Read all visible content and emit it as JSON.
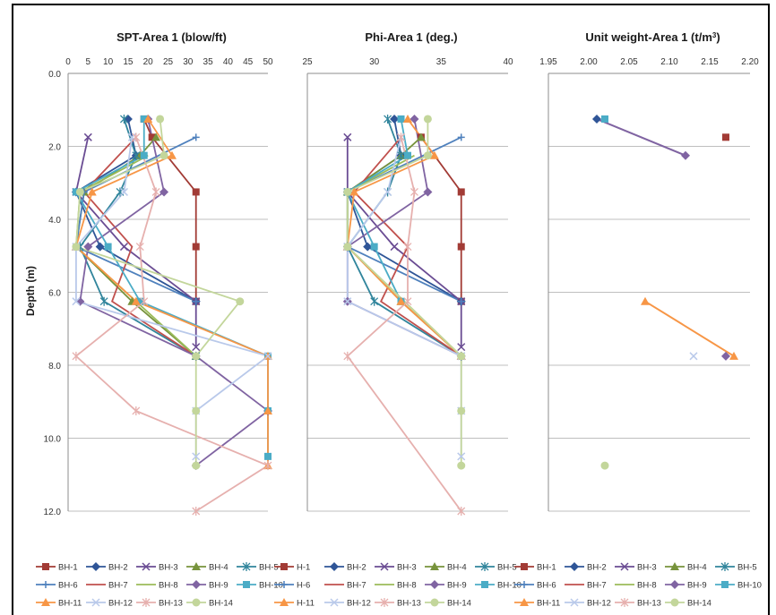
{
  "y_axis_label": "Depth (m)",
  "colors": {
    "BH-1": "#A23B35",
    "BH-2": "#2F5597",
    "BH-3": "#6A4C93",
    "BH-4": "#77933C",
    "BH-5": "#31859C",
    "BH-6": "#4F81BD",
    "BH-7": "#C0504D",
    "BH-8": "#9BBB59",
    "BH-9": "#8064A2",
    "BH-10": "#4BACC6",
    "BH-11": "#F79646",
    "BH-12": "#B9C9EA",
    "BH-13": "#E6B0AE",
    "BH-14": "#C3D69B"
  },
  "markers": {
    "BH-1": "square",
    "BH-2": "diamond",
    "BH-3": "x",
    "BH-4": "triangle",
    "BH-5": "star",
    "BH-6": "plus",
    "BH-7": "none",
    "BH-8": "none",
    "BH-9": "diamond",
    "BH-10": "square",
    "BH-11": "triangle",
    "BH-12": "x",
    "BH-13": "star",
    "BH-14": "circle"
  },
  "chart_data": [
    {
      "type": "line",
      "title": "SPT-Area 1 (blow/ft)",
      "ylabel": "Depth (m)",
      "xlim": [
        0,
        50
      ],
      "ylim": [
        0,
        12
      ],
      "x_ticks": [
        "0",
        "5",
        "10",
        "15",
        "20",
        "25",
        "30",
        "35",
        "40",
        "45",
        "50"
      ],
      "y_ticks": [
        "0.0",
        "2.0",
        "4.0",
        "6.0",
        "8.0",
        "10.0",
        "12.0"
      ],
      "y_inverted": true,
      "legend_position": "bottom",
      "legend_labels": [
        "BH-1",
        "BH-2",
        "BH-3",
        "BH-4",
        "BH-5",
        "BH-6",
        "BH-7",
        "BH-8",
        "BH-9",
        "BH-10",
        "BH-11",
        "BH-12",
        "BH-13",
        "BH-14"
      ],
      "series": [
        {
          "name": "BH-1",
          "points": [
            [
              19,
              1.25
            ],
            [
              21,
              1.75
            ],
            [
              32,
              3.25
            ],
            [
              32,
              4.75
            ],
            [
              32,
              6.25
            ]
          ]
        },
        {
          "name": "BH-2",
          "points": [
            [
              15,
              1.25
            ],
            [
              17,
              2.25
            ],
            [
              2,
              3.25
            ],
            [
              8,
              4.75
            ],
            [
              32,
              6.25
            ]
          ]
        },
        {
          "name": "BH-3",
          "points": [
            [
              5,
              1.75
            ],
            [
              2,
              3.25
            ],
            [
              14,
              4.75
            ],
            [
              32,
              6.25
            ],
            [
              32,
              7.5
            ]
          ]
        },
        {
          "name": "BH-4",
          "points": [
            [
              22,
              1.75
            ],
            [
              18,
              2.25
            ],
            [
              4,
              3.25
            ],
            [
              2,
              4.75
            ],
            [
              16,
              6.25
            ],
            [
              32,
              7.75
            ]
          ]
        },
        {
          "name": "BH-5",
          "points": [
            [
              14,
              1.25
            ],
            [
              17,
              2.25
            ],
            [
              13,
              3.25
            ],
            [
              3,
              4.75
            ],
            [
              9,
              6.25
            ],
            [
              32,
              7.75
            ]
          ]
        },
        {
          "name": "BH-6",
          "points": [
            [
              32,
              1.75
            ],
            [
              4,
              3.25
            ],
            [
              2,
              4.75
            ],
            [
              32,
              6.25
            ]
          ]
        },
        {
          "name": "BH-7",
          "points": [
            [
              17,
              1.75
            ],
            [
              4,
              3.25
            ],
            [
              16,
              4.75
            ],
            [
              11,
              6.25
            ],
            [
              32,
              7.75
            ]
          ]
        },
        {
          "name": "BH-8",
          "points": [
            [
              20,
              2.25
            ],
            [
              3,
              3.25
            ],
            [
              2,
              4.75
            ],
            [
              32,
              7.75
            ]
          ]
        },
        {
          "name": "BH-9",
          "points": [
            [
              20,
              1.25
            ],
            [
              24,
              3.25
            ],
            [
              5,
              4.75
            ],
            [
              3,
              6.25
            ],
            [
              32,
              7.75
            ],
            [
              50,
              9.25
            ],
            [
              32,
              10.75
            ]
          ]
        },
        {
          "name": "BH-10",
          "points": [
            [
              19,
              1.25
            ],
            [
              19,
              2.25
            ],
            [
              2,
              3.25
            ],
            [
              10,
              4.75
            ],
            [
              18,
              6.25
            ],
            [
              50,
              7.75
            ],
            [
              50,
              9.25
            ],
            [
              50,
              10.5
            ]
          ]
        },
        {
          "name": "BH-11",
          "points": [
            [
              20,
              1.25
            ],
            [
              26,
              2.25
            ],
            [
              6,
              3.25
            ],
            [
              2,
              4.75
            ],
            [
              17,
              6.25
            ],
            [
              50,
              7.75
            ],
            [
              50,
              9.25
            ],
            [
              50,
              10.75
            ]
          ]
        },
        {
          "name": "BH-12",
          "points": [
            [
              16,
              1.75
            ],
            [
              14,
              3.25
            ],
            [
              2,
              4.75
            ],
            [
              2,
              6.25
            ],
            [
              50,
              7.75
            ],
            [
              32,
              9.25
            ],
            [
              32,
              10.5
            ]
          ]
        },
        {
          "name": "BH-13",
          "points": [
            [
              17,
              1.75
            ],
            [
              22,
              3.25
            ],
            [
              18,
              4.75
            ],
            [
              19,
              6.25
            ],
            [
              2,
              7.75
            ],
            [
              17,
              9.25
            ],
            [
              50,
              10.75
            ],
            [
              32,
              12.0
            ]
          ]
        },
        {
          "name": "BH-14",
          "points": [
            [
              23,
              1.25
            ],
            [
              24,
              2.25
            ],
            [
              3,
              3.25
            ],
            [
              2,
              4.75
            ],
            [
              43,
              6.25
            ],
            [
              32,
              7.75
            ],
            [
              32,
              9.25
            ],
            [
              32,
              10.75
            ]
          ]
        }
      ]
    },
    {
      "type": "line",
      "title": "Phi-Area 1 (deg.)",
      "xlim": [
        25,
        40
      ],
      "ylim": [
        0,
        12
      ],
      "x_ticks": [
        "25",
        "30",
        "35",
        "40"
      ],
      "y_inverted": true,
      "legend_position": "bottom",
      "legend_labels": [
        "H-1",
        "BH-2",
        "BH-3",
        "BH-4",
        "BH-5",
        "H-6",
        "BH-7",
        "BH-8",
        "BH-9",
        "BH-10",
        "H-11",
        "BH-12",
        "BH-13",
        "BH-14"
      ],
      "series": [
        {
          "name": "BH-1",
          "points": [
            [
              33.5,
              1.75
            ],
            [
              36.5,
              3.25
            ],
            [
              36.5,
              4.75
            ],
            [
              36.5,
              6.25
            ]
          ]
        },
        {
          "name": "BH-2",
          "points": [
            [
              31.5,
              1.25
            ],
            [
              32,
              2.25
            ],
            [
              28,
              3.25
            ],
            [
              29.5,
              4.75
            ],
            [
              36.5,
              6.25
            ]
          ]
        },
        {
          "name": "BH-3",
          "points": [
            [
              28,
              1.75
            ],
            [
              28,
              3.25
            ],
            [
              31.5,
              4.75
            ],
            [
              36.5,
              6.25
            ],
            [
              36.5,
              7.5
            ]
          ]
        },
        {
          "name": "BH-4",
          "points": [
            [
              33.5,
              1.75
            ],
            [
              32,
              2.25
            ],
            [
              28,
              3.25
            ],
            [
              28,
              4.75
            ],
            [
              32,
              6.25
            ],
            [
              36.5,
              7.75
            ]
          ]
        },
        {
          "name": "BH-5",
          "points": [
            [
              31,
              1.25
            ],
            [
              32,
              2.25
            ],
            [
              31,
              3.25
            ],
            [
              28,
              4.75
            ],
            [
              30,
              6.25
            ],
            [
              36.5,
              7.75
            ]
          ]
        },
        {
          "name": "BH-6",
          "points": [
            [
              36.5,
              1.75
            ],
            [
              28,
              3.25
            ],
            [
              28,
              4.75
            ],
            [
              36.5,
              6.25
            ]
          ]
        },
        {
          "name": "BH-7",
          "points": [
            [
              32,
              1.75
            ],
            [
              28.5,
              3.25
            ],
            [
              32.5,
              4.75
            ],
            [
              30.5,
              6.25
            ],
            [
              36.5,
              7.75
            ]
          ]
        },
        {
          "name": "BH-8",
          "points": [
            [
              33,
              2.25
            ],
            [
              28,
              3.25
            ],
            [
              28,
              4.75
            ],
            [
              36.5,
              7.75
            ]
          ]
        },
        {
          "name": "BH-9",
          "points": [
            [
              33,
              1.25
            ],
            [
              34,
              3.25
            ],
            [
              28,
              4.75
            ],
            [
              28,
              6.25
            ],
            [
              36.5,
              7.75
            ]
          ]
        },
        {
          "name": "BH-10",
          "points": [
            [
              32,
              1.25
            ],
            [
              32.5,
              2.25
            ],
            [
              28,
              3.25
            ],
            [
              30,
              4.75
            ],
            [
              32,
              6.25
            ]
          ]
        },
        {
          "name": "BH-11",
          "points": [
            [
              32.5,
              1.25
            ],
            [
              34.5,
              2.25
            ],
            [
              28.5,
              3.25
            ],
            [
              28,
              4.75
            ],
            [
              32,
              6.25
            ],
            [
              36.5,
              7.75
            ]
          ]
        },
        {
          "name": "BH-12",
          "points": [
            [
              32,
              1.75
            ],
            [
              31,
              3.25
            ],
            [
              28,
              4.75
            ],
            [
              28,
              6.25
            ],
            [
              36.5,
              7.75
            ],
            [
              36.5,
              9.25
            ],
            [
              36.5,
              10.5
            ]
          ]
        },
        {
          "name": "BH-13",
          "points": [
            [
              32,
              1.75
            ],
            [
              33,
              3.25
            ],
            [
              32.5,
              4.75
            ],
            [
              32.5,
              6.25
            ],
            [
              28,
              7.75
            ],
            [
              36.5,
              12.0
            ]
          ]
        },
        {
          "name": "BH-14",
          "points": [
            [
              34,
              1.25
            ],
            [
              34,
              2.25
            ],
            [
              28,
              3.25
            ],
            [
              28,
              4.75
            ],
            [
              36.5,
              7.75
            ],
            [
              36.5,
              9.25
            ],
            [
              36.5,
              10.75
            ]
          ]
        }
      ]
    },
    {
      "type": "scatter",
      "title": "Unit weight-Area 1 (t/m",
      "title_sup": "3",
      "title_end": ")",
      "xlim": [
        1.95,
        2.2
      ],
      "ylim": [
        0,
        12
      ],
      "x_ticks": [
        "1.95",
        "2.00",
        "2.05",
        "2.10",
        "2.15",
        "2.20"
      ],
      "y_inverted": true,
      "legend_position": "bottom",
      "legend_labels": [
        "BH-1",
        "BH-2",
        "BH-3",
        "BH-4",
        "BH-5",
        "BH-6",
        "BH-7",
        "BH-8",
        "BH-9",
        "BH-10",
        "BH-11",
        "BH-12",
        "BH-13",
        "BH-14"
      ],
      "series": [
        {
          "name": "BH-1",
          "points": [
            [
              2.17,
              1.75
            ]
          ]
        },
        {
          "name": "BH-2",
          "points": [
            [
              2.01,
              1.25
            ]
          ]
        },
        {
          "name": "BH-9",
          "points": [
            [
              2.12,
              2.25
            ],
            [
              2.17,
              7.75
            ]
          ]
        },
        {
          "name": "BH-10",
          "points": [
            [
              2.02,
              1.25
            ]
          ]
        },
        {
          "name": "BH-11",
          "points": [
            [
              2.07,
              6.25
            ],
            [
              2.18,
              7.75
            ]
          ]
        },
        {
          "name": "BH-12",
          "points": [
            [
              2.13,
              7.75
            ]
          ]
        },
        {
          "name": "BH-14",
          "points": [
            [
              2.02,
              10.75
            ]
          ]
        }
      ],
      "connectors": [
        {
          "series": "BH-9",
          "points": [
            [
              2.01,
              1.25
            ],
            [
              2.12,
              2.25
            ]
          ]
        }
      ]
    }
  ]
}
